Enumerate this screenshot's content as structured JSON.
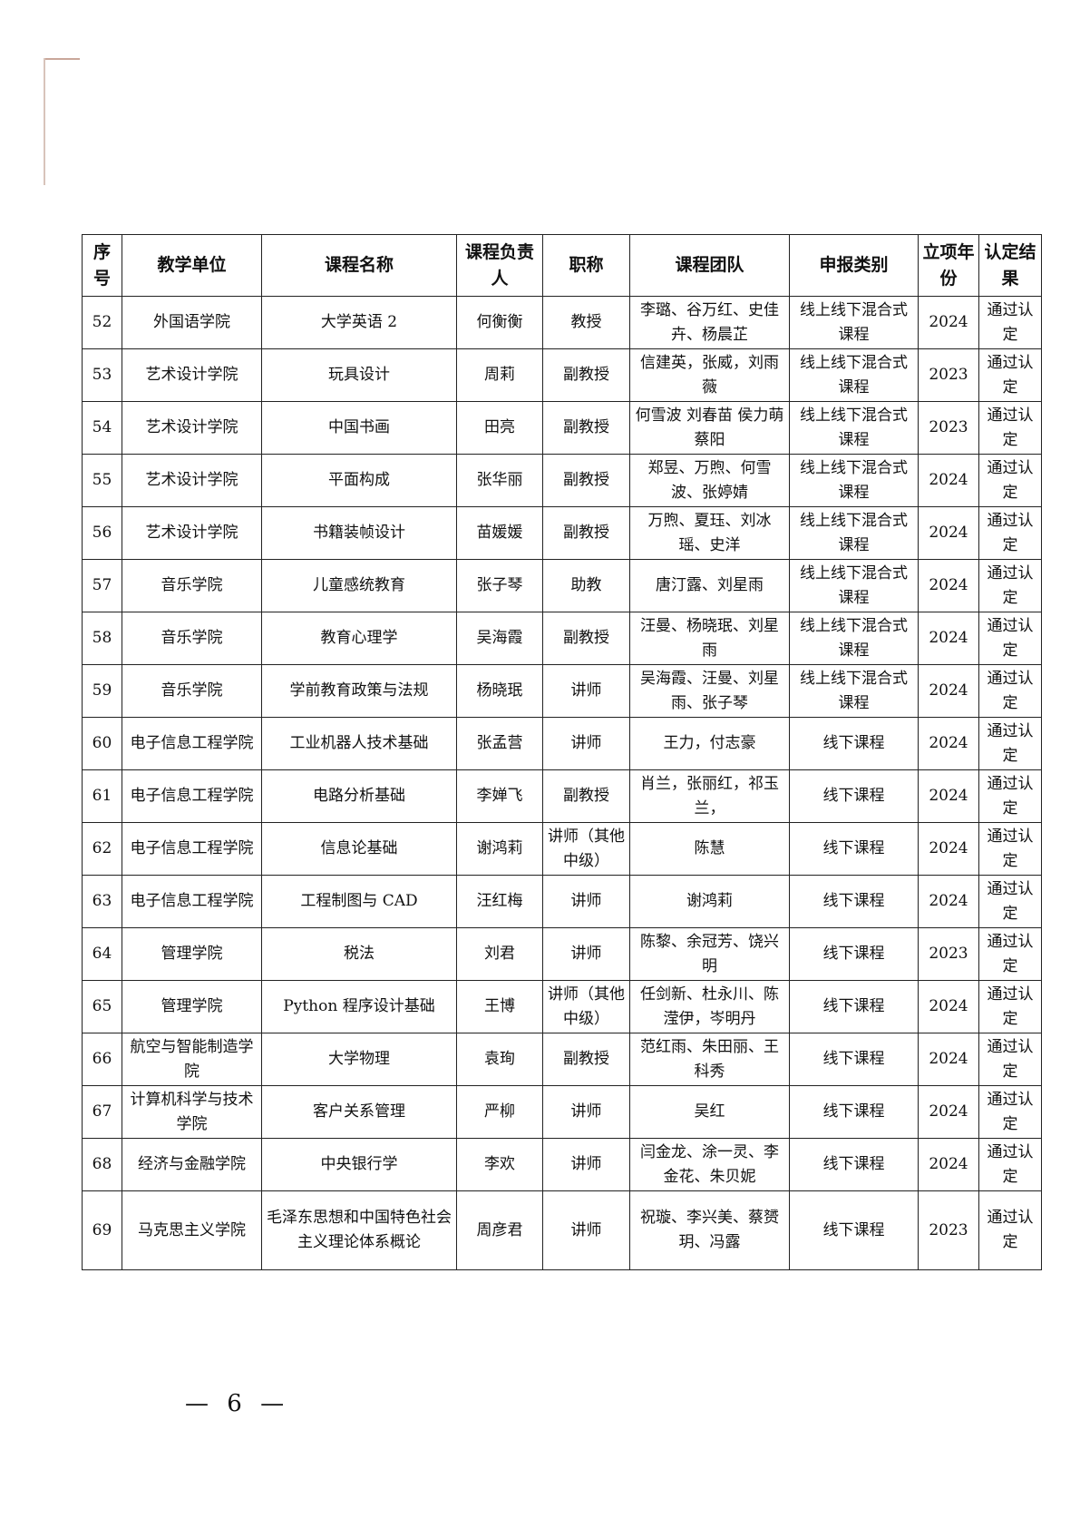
{
  "table": {
    "headers": [
      "序号",
      "教学单位",
      "课程名称",
      "课程负责人",
      "职称",
      "课程团队",
      "申报类别",
      "立项年份",
      "认定结果"
    ],
    "rows": [
      [
        "52",
        "外国语学院",
        "大学英语 2",
        "何衡衡",
        "教授",
        "李璐、谷万红、史佳卉、杨晨芷",
        "线上线下混合式课程",
        "2024",
        "通过认定"
      ],
      [
        "53",
        "艺术设计学院",
        "玩具设计",
        "周莉",
        "副教授",
        "信建英，张威，刘雨薇",
        "线上线下混合式课程",
        "2023",
        "通过认定"
      ],
      [
        "54",
        "艺术设计学院",
        "中国书画",
        "田亮",
        "副教授",
        "何雪波 刘春苗 侯力萌 蔡阳",
        "线上线下混合式课程",
        "2023",
        "通过认定"
      ],
      [
        "55",
        "艺术设计学院",
        "平面构成",
        "张华丽",
        "副教授",
        "郑昱、万煦、何雪波、张婷婧",
        "线上线下混合式课程",
        "2024",
        "通过认定"
      ],
      [
        "56",
        "艺术设计学院",
        "书籍装帧设计",
        "苗媛媛",
        "副教授",
        "万煦、夏珏、刘冰瑶、史洋",
        "线上线下混合式课程",
        "2024",
        "通过认定"
      ],
      [
        "57",
        "音乐学院",
        "儿童感统教育",
        "张子琴",
        "助教",
        "唐汀露、刘星雨",
        "线上线下混合式课程",
        "2024",
        "通过认定"
      ],
      [
        "58",
        "音乐学院",
        "教育心理学",
        "吴海霞",
        "副教授",
        "汪曼、杨晓珉、刘星雨",
        "线上线下混合式课程",
        "2024",
        "通过认定"
      ],
      [
        "59",
        "音乐学院",
        "学前教育政策与法规",
        "杨晓珉",
        "讲师",
        "吴海霞、汪曼、刘星雨、张子琴",
        "线上线下混合式课程",
        "2024",
        "通过认定"
      ],
      [
        "60",
        "电子信息工程学院",
        "工业机器人技术基础",
        "张孟营",
        "讲师",
        "王力，付志豪",
        "线下课程",
        "2024",
        "通过认定"
      ],
      [
        "61",
        "电子信息工程学院",
        "电路分析基础",
        "李婵飞",
        "副教授",
        "肖兰，张丽红，祁玉兰，",
        "线下课程",
        "2024",
        "通过认定"
      ],
      [
        "62",
        "电子信息工程学院",
        "信息论基础",
        "谢鸿莉",
        "讲师（其他中级）",
        "陈慧",
        "线下课程",
        "2024",
        "通过认定"
      ],
      [
        "63",
        "电子信息工程学院",
        "工程制图与 CAD",
        "汪红梅",
        "讲师",
        "谢鸿莉",
        "线下课程",
        "2024",
        "通过认定"
      ],
      [
        "64",
        "管理学院",
        "税法",
        "刘君",
        "讲师",
        "陈黎、余冠芳、饶兴明",
        "线下课程",
        "2023",
        "通过认定"
      ],
      [
        "65",
        "管理学院",
        "Python 程序设计基础",
        "王博",
        "讲师（其他中级）",
        "任剑新、杜永川、陈滢伊，岑明丹",
        "线下课程",
        "2024",
        "通过认定"
      ],
      [
        "66",
        "航空与智能制造学院",
        "大学物理",
        "袁珣",
        "副教授",
        "范红雨、朱田丽、王科秀",
        "线下课程",
        "2024",
        "通过认定"
      ],
      [
        "67",
        "计算机科学与技术学院",
        "客户关系管理",
        "严柳",
        "讲师",
        "吴红",
        "线下课程",
        "2024",
        "通过认定"
      ],
      [
        "68",
        "经济与金融学院",
        "中央银行学",
        "李欢",
        "讲师",
        "闫金龙、涂一灵、李金花、朱贝妮",
        "线下课程",
        "2024",
        "通过认定"
      ],
      [
        "69",
        "马克思主义学院",
        "毛泽东思想和中国特色社会主义理论体系概论",
        "周彦君",
        "讲师",
        "祝璇、李兴美、蔡赟玥、冯露",
        "线下课程",
        "2023",
        "通过认定"
      ]
    ]
  },
  "footer": {
    "page_number": "— 6 —"
  }
}
